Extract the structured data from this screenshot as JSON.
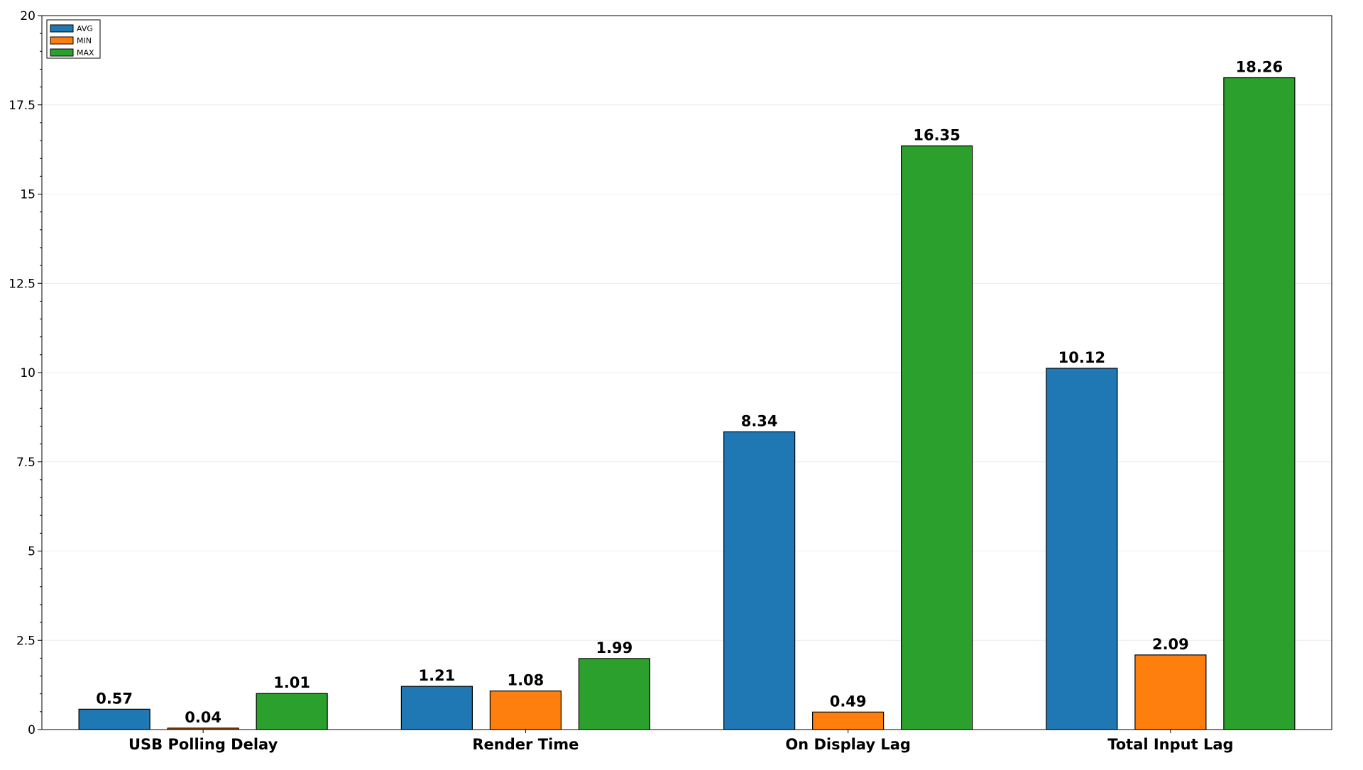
{
  "chart_data": {
    "type": "bar",
    "categories": [
      "USB Polling Delay",
      "Render Time",
      "On Display Lag",
      "Total Input Lag"
    ],
    "series": [
      {
        "name": "AVG",
        "color": "#1f77b4",
        "values": [
          0.57,
          1.21,
          8.34,
          10.12
        ]
      },
      {
        "name": "MIN",
        "color": "#ff7f0e",
        "values": [
          0.04,
          1.08,
          0.49,
          2.09
        ]
      },
      {
        "name": "MAX",
        "color": "#2ca02c",
        "values": [
          1.01,
          1.99,
          16.35,
          18.26
        ]
      }
    ],
    "title": "",
    "xlabel": "",
    "ylabel": "",
    "ylim": [
      0,
      20
    ],
    "yticks": [
      0,
      2.5,
      5,
      7.5,
      10,
      12.5,
      15,
      17.5,
      20
    ],
    "ytick_labels": [
      "0",
      "2.5",
      "5",
      "7.5",
      "10",
      "12.5",
      "15",
      "17.5",
      "20"
    ],
    "grid": true,
    "legend_position": "top-left"
  }
}
